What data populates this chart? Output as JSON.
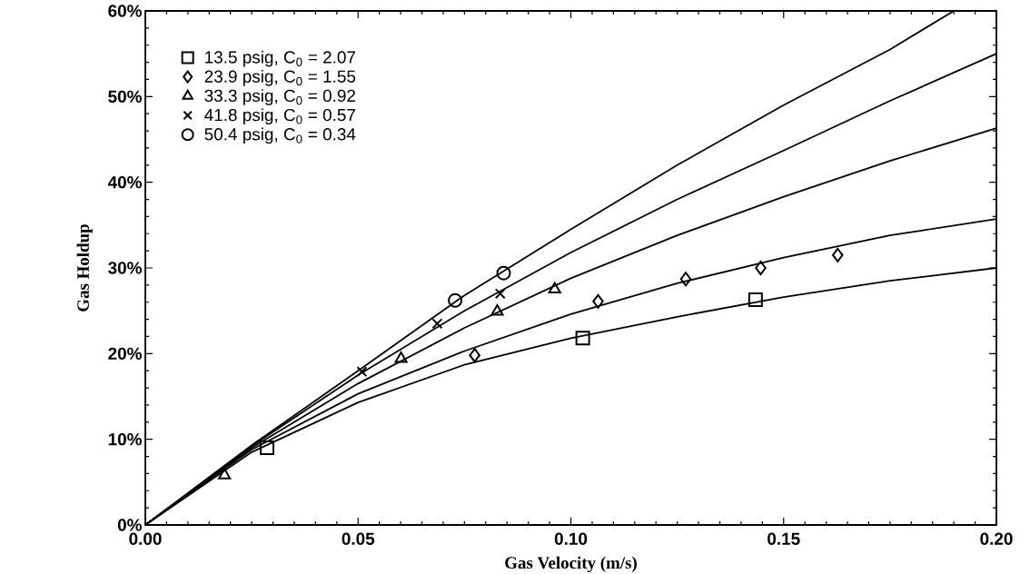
{
  "chart_data": {
    "type": "scatter",
    "xlabel": "Gas Velocity (m/s)",
    "ylabel": "Gas Holdup",
    "xlim": [
      0,
      0.2
    ],
    "ylim": [
      0,
      60
    ],
    "xticks": [
      {
        "value": 0,
        "label": "0.00"
      },
      {
        "value": 0.05,
        "label": "0.05"
      },
      {
        "value": 0.1,
        "label": "0.10"
      },
      {
        "value": 0.15,
        "label": "0.15"
      },
      {
        "value": 0.2,
        "label": "0.20"
      }
    ],
    "yticks": [
      {
        "value": 0,
        "label": "0%"
      },
      {
        "value": 10,
        "label": "10%"
      },
      {
        "value": 20,
        "label": "20%"
      },
      {
        "value": 30,
        "label": "30%"
      },
      {
        "value": 40,
        "label": "40%"
      },
      {
        "value": 50,
        "label": "50%"
      },
      {
        "value": 60,
        "label": "60%"
      }
    ],
    "legend": "top left",
    "series": [
      {
        "name": "13.5 psig, C$_{0}$ = 2.07",
        "marker": "square",
        "color": "#000000",
        "x": [
          0.0286,
          0.1028,
          0.1434
        ],
        "values": [
          9.0,
          21.8,
          26.3
        ]
      },
      {
        "name": "23.9 psig, C$_{0}$ = 1.55",
        "marker": "diamond",
        "color": "#000000",
        "x": [
          0.0774,
          0.1064,
          0.127,
          0.1446,
          0.1627
        ],
        "values": [
          19.8,
          26.1,
          28.7,
          30.0,
          31.5
        ]
      },
      {
        "name": "33.3 psig, C$_{0}$ = 0.92",
        "marker": "triangle",
        "color": "#000000",
        "x": [
          0.0186,
          0.0601,
          0.0827,
          0.0962
        ],
        "values": [
          5.8,
          19.4,
          24.9,
          27.5
        ]
      },
      {
        "name": "41.8 psig, C$_{0}$ = 0.57",
        "marker": "cross",
        "color": "#000000",
        "x": [
          0.0509,
          0.0686,
          0.0834
        ],
        "values": [
          17.9,
          23.5,
          27.0
        ]
      },
      {
        "name": "50.4 psig, C$_{0}$ = 0.34",
        "marker": "circle",
        "color": "#000000",
        "x": [
          0.0728,
          0.0842
        ],
        "values": [
          26.2,
          29.4
        ]
      },
      {
        "type": "line",
        "color": "#000000",
        "x": [
          0,
          0.025,
          0.05,
          0.075,
          0.1,
          0.125,
          0.15,
          0.175,
          0.2
        ],
        "values": [
          0,
          8.5,
          14.3,
          18.7,
          21.8,
          24.3,
          26.6,
          28.5,
          30.0
        ]
      },
      {
        "type": "line",
        "color": "#000000",
        "x": [
          0,
          0.025,
          0.05,
          0.075,
          0.1,
          0.125,
          0.15,
          0.175,
          0.2
        ],
        "values": [
          0,
          8.8,
          15.3,
          20.3,
          24.6,
          28.2,
          31.2,
          33.8,
          35.7
        ]
      },
      {
        "type": "line",
        "color": "#000000",
        "x": [
          0,
          0.025,
          0.05,
          0.075,
          0.1,
          0.125,
          0.15,
          0.175,
          0.2
        ],
        "values": [
          0,
          9.0,
          16.5,
          23.0,
          28.8,
          33.8,
          38.3,
          42.5,
          46.3
        ]
      },
      {
        "type": "line",
        "color": "#000000",
        "x": [
          0,
          0.025,
          0.05,
          0.075,
          0.1,
          0.125,
          0.15,
          0.175,
          0.2
        ],
        "values": [
          0,
          9.2,
          17.5,
          25.0,
          31.8,
          38.0,
          43.7,
          49.5,
          55.0
        ]
      },
      {
        "type": "line",
        "color": "#000000",
        "x": [
          0,
          0.025,
          0.05,
          0.075,
          0.1,
          0.125,
          0.15,
          0.175,
          0.19
        ],
        "values": [
          0,
          9.3,
          18.0,
          26.8,
          34.5,
          42.0,
          49.0,
          55.5,
          60.0
        ]
      }
    ]
  }
}
